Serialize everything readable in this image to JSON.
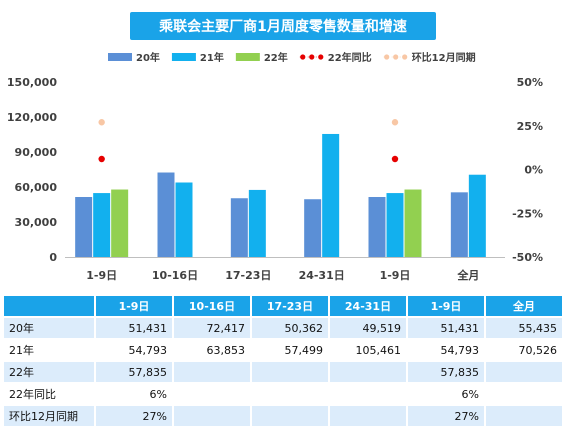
{
  "chart_data": {
    "type": "bar",
    "title": "乘联会主要厂商1月周度零售数量和增速",
    "categories": [
      "1-9日",
      "10-16日",
      "17-23日",
      "24-31日",
      "1-9日",
      "全月"
    ],
    "series": [
      {
        "name": "20年",
        "type": "bar",
        "axis": "left",
        "color": "#5b8fd6",
        "values": [
          51431,
          72417,
          50362,
          49519,
          51431,
          55435
        ]
      },
      {
        "name": "21年",
        "type": "bar",
        "axis": "left",
        "color": "#12b0ee",
        "values": [
          54793,
          63853,
          57499,
          105461,
          54793,
          70526
        ]
      },
      {
        "name": "22年",
        "type": "bar",
        "axis": "left",
        "color": "#92d050",
        "values": [
          57835,
          null,
          null,
          null,
          57835,
          null
        ]
      },
      {
        "name": "22年同比",
        "type": "scatter",
        "axis": "right",
        "color": "#e60000",
        "values": [
          0.06,
          null,
          null,
          null,
          0.06,
          null
        ]
      },
      {
        "name": "环比12月同期",
        "type": "scatter",
        "axis": "right",
        "color": "#f8c7a5",
        "values": [
          0.27,
          null,
          null,
          null,
          0.27,
          null
        ]
      }
    ],
    "ylim": [
      0,
      150000
    ],
    "yticks": [
      "0",
      "30,000",
      "60,000",
      "90,000",
      "120,000",
      "150,000"
    ],
    "y2lim": [
      -0.5,
      0.5
    ],
    "y2ticks": [
      "-50%",
      "-25%",
      "0%",
      "25%",
      "50%"
    ],
    "legend_position": "top",
    "grid": false
  },
  "table": {
    "headers": [
      "",
      "1-9日",
      "10-16日",
      "17-23日",
      "24-31日",
      "1-9日",
      "全月"
    ],
    "rows": [
      {
        "label": "20年",
        "cells": [
          "51,431",
          "72,417",
          "50,362",
          "49,519",
          "51,431",
          "55,435"
        ]
      },
      {
        "label": "21年",
        "cells": [
          "54,793",
          "63,853",
          "57,499",
          "105,461",
          "54,793",
          "70,526"
        ]
      },
      {
        "label": "22年",
        "cells": [
          "57,835",
          "",
          "",
          "",
          "57,835",
          ""
        ]
      },
      {
        "label": "22年同比",
        "cells": [
          "6%",
          "",
          "",
          "",
          "6%",
          ""
        ]
      },
      {
        "label": "环比12月同期",
        "cells": [
          "27%",
          "",
          "",
          "",
          "27%",
          ""
        ]
      }
    ]
  }
}
